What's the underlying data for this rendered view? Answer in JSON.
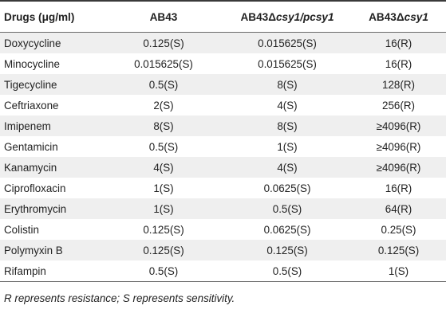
{
  "table": {
    "headers": [
      "Drugs (μg/ml)",
      "AB43",
      "AB43Δcsy1/pcsy1",
      "AB43Δcsy1"
    ],
    "rows": [
      [
        "Doxycycline",
        "0.125(S)",
        "0.015625(S)",
        "16(R)"
      ],
      [
        "Minocycline",
        "0.015625(S)",
        "0.015625(S)",
        "16(R)"
      ],
      [
        "Tigecycline",
        "0.5(S)",
        "8(S)",
        "128(R)"
      ],
      [
        "Ceftriaxone",
        "2(S)",
        "4(S)",
        "256(R)"
      ],
      [
        "Imipenem",
        "8(S)",
        "8(S)",
        "≥4096(R)"
      ],
      [
        "Gentamicin",
        "0.5(S)",
        "1(S)",
        "≥4096(R)"
      ],
      [
        "Kanamycin",
        "4(S)",
        "4(S)",
        "≥4096(R)"
      ],
      [
        "Ciprofloxacin",
        "1(S)",
        "0.0625(S)",
        "16(R)"
      ],
      [
        "Erythromycin",
        "1(S)",
        "0.5(S)",
        "64(R)"
      ],
      [
        "Colistin",
        "0.125(S)",
        "0.0625(S)",
        "0.25(S)"
      ],
      [
        "Polymyxin B",
        "0.125(S)",
        "0.125(S)",
        "0.125(S)"
      ],
      [
        "Rifampin",
        "0.5(S)",
        "0.5(S)",
        "1(S)"
      ]
    ]
  },
  "footnote": "R represents resistance; S represents sensitivity."
}
